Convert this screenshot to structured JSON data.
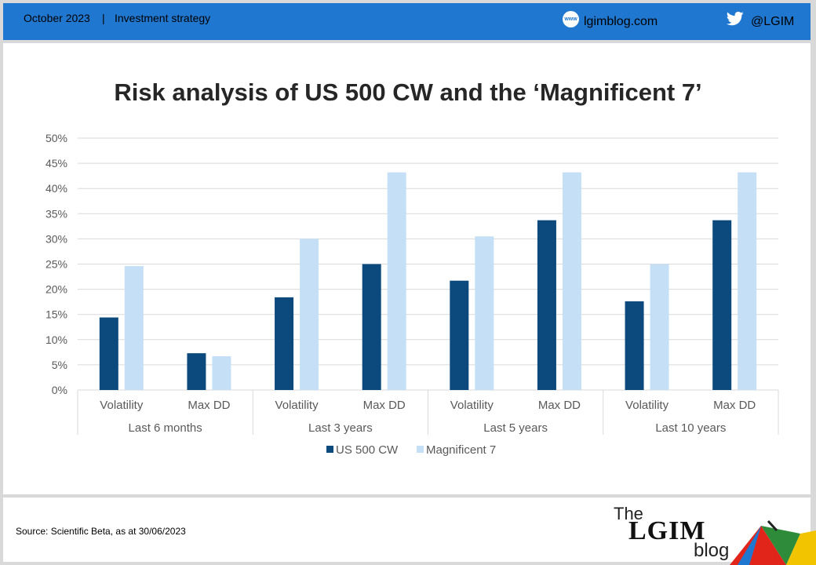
{
  "header": {
    "date": "October 2023",
    "separator": "|",
    "category": "Investment strategy",
    "www_icon_label": "www",
    "website": "lgimblog.com",
    "twitter_handle": "@LGIM",
    "icons": [
      "www-globe-icon",
      "twitter-bird-icon"
    ]
  },
  "footer": {
    "source": "Source: Scientific Beta, as at 30/06/2023",
    "logo": {
      "the": "The",
      "main": "LGIM",
      "blog": "blog"
    }
  },
  "colors": {
    "header_bg": "#1f77d0",
    "us500": "#0c4a7e",
    "mag7": "#c5e0f6"
  },
  "chart_data": {
    "type": "bar",
    "title": "Risk analysis of US 500 CW and the ‘Magnificent 7’",
    "categories": [
      "Volatility",
      "Max DD",
      "Volatility",
      "Max DD",
      "Volatility",
      "Max DD",
      "Volatility",
      "Max DD"
    ],
    "groups": [
      "Last 6 months",
      "Last 3 years",
      "Last 5 years",
      "Last 10 years"
    ],
    "series": [
      {
        "name": "US 500 CW",
        "color": "#0c4a7e",
        "values": [
          14.4,
          7.3,
          18.4,
          25.0,
          21.7,
          33.7,
          17.6,
          33.7
        ]
      },
      {
        "name": "Magnificent 7",
        "color": "#c5e0f6",
        "values": [
          24.6,
          6.7,
          30.0,
          43.2,
          30.5,
          43.2,
          25.0,
          43.2
        ]
      }
    ],
    "ylim": [
      0,
      50
    ],
    "yticks": [
      "0%",
      "5%",
      "10%",
      "15%",
      "20%",
      "25%",
      "30%",
      "35%",
      "40%",
      "45%",
      "50%"
    ],
    "ytick_values": [
      0,
      5,
      10,
      15,
      20,
      25,
      30,
      35,
      40,
      45,
      50
    ],
    "grid": true,
    "legend_position": "bottom"
  }
}
